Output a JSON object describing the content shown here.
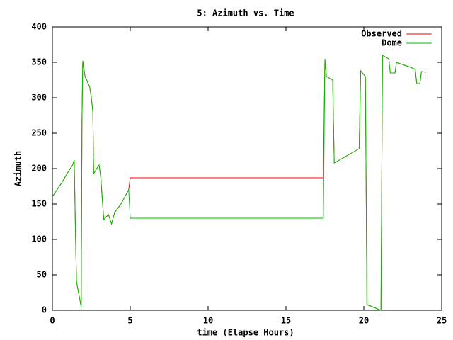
{
  "chart_data": {
    "type": "line",
    "title": "5: Azimuth vs. Time",
    "x_label": "time (Elapse Hours)",
    "y_label": "Azimuth",
    "x": [
      0,
      0.2,
      0.6,
      1.0,
      1.3,
      1.4,
      1.5,
      1.55,
      1.85,
      1.9,
      1.95,
      2.1,
      2.4,
      2.5,
      2.6,
      2.65,
      3.0,
      3.1,
      3.3,
      3.6,
      3.8,
      4.0,
      4.4,
      4.9,
      5.0,
      17.4,
      17.5,
      17.6,
      18.0,
      18.1,
      19.7,
      19.8,
      20.1,
      20.2,
      21.1,
      21.2,
      21.6,
      21.7,
      22.0,
      22.1,
      23.0,
      23.3,
      23.4,
      23.6,
      23.7,
      24.0
    ],
    "series": [
      {
        "name": "Observed",
        "color": "#ff0000",
        "values": [
          160,
          167,
          180,
          195,
          205,
          212,
          90,
          40,
          5,
          265,
          352,
          330,
          315,
          300,
          280,
          193,
          205,
          190,
          128,
          135,
          122,
          138,
          150,
          170,
          187,
          187,
          355,
          330,
          325,
          208,
          228,
          338,
          330,
          8,
          0,
          360,
          355,
          335,
          335,
          350,
          343,
          340,
          320,
          320,
          337,
          336
        ]
      },
      {
        "name": "Dome",
        "color": "#00c000",
        "values": [
          160,
          167,
          180,
          195,
          205,
          212,
          90,
          40,
          5,
          265,
          352,
          330,
          315,
          300,
          280,
          193,
          205,
          190,
          128,
          135,
          122,
          138,
          150,
          170,
          130,
          130,
          355,
          330,
          325,
          208,
          228,
          338,
          330,
          8,
          0,
          360,
          355,
          335,
          335,
          350,
          343,
          340,
          320,
          320,
          337,
          336
        ]
      }
    ],
    "xlim": [
      0,
      25
    ],
    "xticks": [
      0,
      5,
      10,
      15,
      20,
      25
    ],
    "ylim": [
      0,
      400
    ],
    "yticks": [
      0,
      50,
      100,
      150,
      200,
      250,
      300,
      350,
      400
    ],
    "legend": "top-right"
  }
}
